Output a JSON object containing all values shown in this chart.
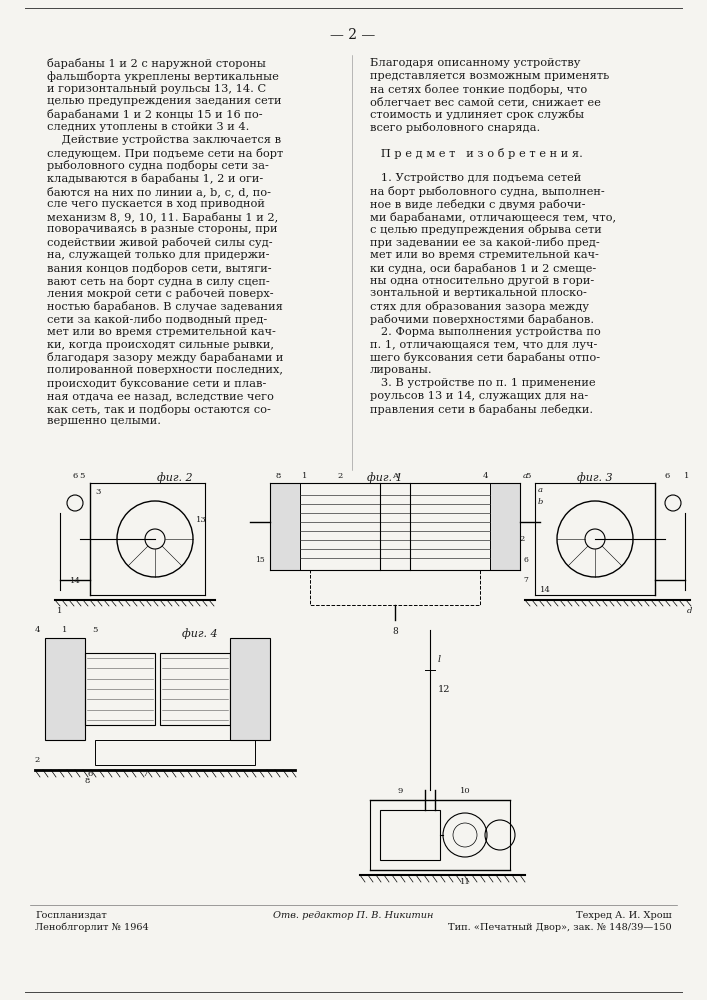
{
  "page_number": "— 2 —",
  "background_color": "#f5f4f0",
  "text_color": "#1a1a1a",
  "left_column_lines": [
    "барабаны 1 и 2 с наружной стороны",
    "фальшборта укреплены вертикальные",
    "и горизонтальный роульсы 13, 14. С",
    "целью предупреждения заедания сети",
    "барабанами 1 и 2 концы 15 и 16 по-",
    "следних утоплены в стойки 3 и 4.",
    "    Действие устройства заключается в",
    "следующем. При подъеме сети на борт",
    "рыболовного судна подборы сети за-",
    "кладываются в барабаны 1, 2 и оги-",
    "баются на них по линии a, b, c, d, по-",
    "сле чего пускается в ход приводной",
    "механизм 8, 9, 10, 11. Барабаны 1 и 2,",
    "поворачиваясь в разные стороны, при",
    "содействии живой рабочей силы суд-",
    "на, служащей только для придержи-",
    "вания концов подборов сети, вытяги-",
    "вают сеть на борт судна в силу сцеп-",
    "ления мокрой сети с рабочей поверх-",
    "ностью барабанов. В случае задевания",
    "сети за какой-либо подводный пред-",
    "мет или во время стремительной кач-",
    "ки, когда происходят сильные рывки,",
    "благодаря зазору между барабанами и",
    "полированной поверхности последних,",
    "происходит буксование сети и плав-",
    "ная отдача ее назад, вследствие чего",
    "как сеть, так и подборы остаются со-",
    "вершенно целыми."
  ],
  "right_column_lines": [
    "Благодаря описанному устройству",
    "представляется возможным применять",
    "на сетях более тонкие подборы, что",
    "облегчает вес самой сети, снижает ее",
    "стоимость и удлиняет срок службы",
    "всего рыболовного снаряда.",
    "",
    "   П р е д м е т   и з о б р е т е н и я.",
    "",
    "   1. Устройство для подъема сетей",
    "на борт рыболовного судна, выполнен-",
    "ное в виде лебедки с двумя рабочи-",
    "ми барабанами, отличающееся тем, что,",
    "с целью предупреждения обрыва сети",
    "при задевании ее за какой-либо пред-",
    "мет или во время стремительной кач-",
    "ки судна, оси барабанов 1 и 2 смеще-",
    "ны одна относительно другой в гори-",
    "зонтальной и вертикальной плоско-",
    "стях для образования зазора между",
    "рабочими поверхностями барабанов.",
    "   2. Форма выполнения устройства по",
    "п. 1, отличающаяся тем, что для луч-",
    "шего буксования сети барабаны отпо-",
    "лированы.",
    "   3. В устройстве по п. 1 применение",
    "роульсов 13 и 14, служащих для на-",
    "правления сети в барабаны лебедки."
  ],
  "footer_left1": "Госпланиздат",
  "footer_left2": "Леноблгорлит № 1964",
  "footer_center": "Отв. редактор П. В. Никитин",
  "footer_right1": "Техред А. И. Хрош",
  "footer_right2": "Тип. «Печатный Двор», зак. № 148/39—150"
}
